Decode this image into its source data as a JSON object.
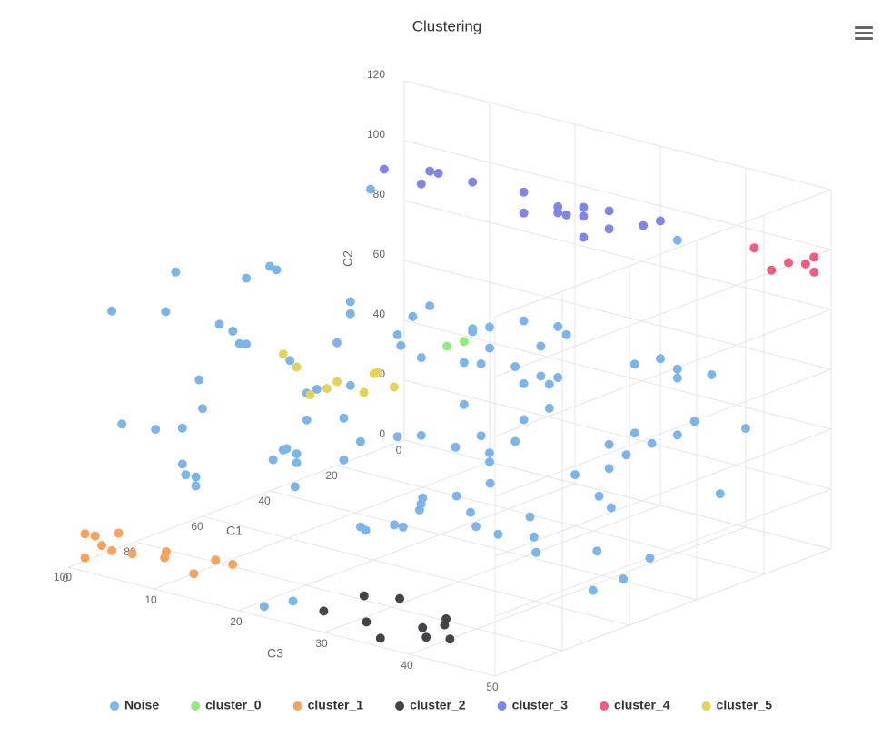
{
  "chart_data": {
    "type": "scatter3d",
    "title": "Clustering",
    "xlabel": "C1",
    "ylabel": "C2",
    "zlabel": "C3",
    "xlim": [
      0,
      100
    ],
    "ylim": [
      0,
      120
    ],
    "zlim": [
      0,
      50
    ],
    "xticks": [
      0,
      20,
      40,
      60,
      80,
      100
    ],
    "yticks": [
      0,
      20,
      40,
      60,
      80,
      100,
      120
    ],
    "zticks": [
      0,
      10,
      20,
      30,
      40,
      50
    ],
    "grid": true,
    "legend": "bottom",
    "series": [
      {
        "name": "Noise",
        "color": "#7cb5ec",
        "values": [
          [
            87,
            80,
            0
          ],
          [
            71,
            73,
            0
          ],
          [
            68,
            85,
            0
          ],
          [
            47,
            74,
            0
          ],
          [
            40,
            75,
            0
          ],
          [
            38,
            73,
            0
          ],
          [
            55,
            62,
            0
          ],
          [
            51,
            58,
            0
          ],
          [
            49,
            53,
            0
          ],
          [
            47,
            52,
            0
          ],
          [
            61,
            46,
            0
          ],
          [
            60,
            36,
            0
          ],
          [
            84,
            41,
            0
          ],
          [
            74,
            35,
            0
          ],
          [
            66,
            32,
            0
          ],
          [
            66,
            20,
            0
          ],
          [
            65,
            16,
            0
          ],
          [
            62,
            14,
            0
          ],
          [
            62,
            11,
            0
          ],
          [
            34,
            41,
            0
          ],
          [
            29,
            19,
            0
          ],
          [
            18,
            15,
            0
          ],
          [
            26,
            28,
            0
          ],
          [
            29,
            28,
            0
          ],
          [
            16,
            53,
            0
          ],
          [
            16,
            49,
            0
          ],
          [
            20,
            41,
            0
          ],
          [
            16,
            25,
            0
          ],
          [
            13,
            5,
            0
          ],
          [
            18,
            1,
            0
          ],
          [
            35,
            12,
            0
          ],
          [
            36,
            12,
            0
          ],
          [
            32,
            9,
            0
          ],
          [
            39,
            10,
            0
          ],
          [
            32,
            6,
            0
          ],
          [
            35,
            0,
            1
          ],
          [
            10,
            88,
            0
          ],
          [
            2,
            36,
            0
          ],
          [
            1,
            32,
            0
          ],
          [
            2,
            2,
            0
          ],
          [
            46,
            0,
            13
          ],
          [
            47,
            0,
            14
          ],
          [
            41,
            0,
            15
          ],
          [
            41,
            0,
            16
          ],
          [
            95,
            0,
            21
          ],
          [
            89,
            0,
            22
          ],
          [
            0,
            42,
            1
          ],
          [
            0,
            47,
            3
          ],
          [
            0,
            29,
            2
          ],
          [
            0,
            43,
            8
          ],
          [
            0,
            42,
            8
          ],
          [
            0,
            45,
            10
          ],
          [
            0,
            38,
            10
          ],
          [
            0,
            31,
            7
          ],
          [
            0,
            32,
            9
          ],
          [
            0,
            34,
            13
          ],
          [
            0,
            50,
            14
          ],
          [
            0,
            51,
            18
          ],
          [
            0,
            49,
            19
          ],
          [
            0,
            43,
            16
          ],
          [
            0,
            33,
            16
          ],
          [
            0,
            34,
            18
          ],
          [
            0,
            29,
            14
          ],
          [
            0,
            31,
            17
          ],
          [
            0,
            17,
            7
          ],
          [
            0,
            8,
            9
          ],
          [
            0,
            17,
            14
          ],
          [
            0,
            23,
            17
          ],
          [
            0,
            9,
            13
          ],
          [
            0,
            3,
            2
          ],
          [
            0,
            2,
            6
          ],
          [
            0,
            3,
            10
          ],
          [
            0,
            0,
            10
          ],
          [
            10,
            0,
            14
          ],
          [
            0,
            3,
            20
          ],
          [
            3,
            0,
            24
          ],
          [
            0,
            8,
            24
          ],
          [
            0,
            14,
            26
          ],
          [
            0,
            22,
            27
          ],
          [
            0,
            16,
            24
          ],
          [
            7,
            0,
            27
          ],
          [
            0,
            20,
            29
          ],
          [
            0,
            25,
            32
          ],
          [
            0,
            31,
            34
          ],
          [
            0,
            49,
            30
          ],
          [
            0,
            47,
            32
          ],
          [
            0,
            44,
            32
          ],
          [
            0,
            48,
            36
          ],
          [
            0,
            45,
            27
          ],
          [
            0,
            33,
            40
          ],
          [
            0,
            9,
            37
          ],
          [
            0,
            90,
            32
          ],
          [
            25,
            0,
            12
          ],
          [
            28,
            0,
            13
          ],
          [
            31,
            0,
            14
          ],
          [
            20,
            0,
            14
          ],
          [
            26,
            0,
            18
          ],
          [
            32,
            0,
            21
          ],
          [
            33,
            0,
            24
          ],
          [
            21,
            0,
            23
          ],
          [
            30,
            0,
            27
          ],
          [
            37,
            0,
            30
          ],
          [
            29,
            0,
            34
          ],
          [
            26,
            0,
            39
          ],
          [
            39,
            0,
            41
          ],
          [
            48,
            0,
            41
          ]
        ]
      },
      {
        "name": "cluster_0",
        "color": "#90ed7d",
        "values": [
          [
            0,
            35,
            5
          ],
          [
            0,
            38,
            7
          ]
        ]
      },
      {
        "name": "cluster_1",
        "color": "#f7a35c",
        "values": [
          [
            95,
            9,
            0
          ],
          [
            92,
            7,
            0
          ],
          [
            85,
            5,
            0
          ],
          [
            90,
            3,
            0
          ],
          [
            87,
            0,
            0
          ],
          [
            86,
            0,
            2
          ],
          [
            95,
            1,
            0
          ],
          [
            81,
            0,
            4
          ],
          [
            84,
            0,
            5
          ],
          [
            88,
            0,
            10
          ],
          [
            79,
            0,
            9
          ],
          [
            79,
            0,
            11
          ]
        ]
      },
      {
        "name": "cluster_2",
        "color": "#434348",
        "values": [
          [
            78,
            0,
            26
          ],
          [
            75,
            0,
            29
          ],
          [
            90,
            0,
            26
          ],
          [
            90,
            0,
            31
          ],
          [
            86,
            0,
            36
          ],
          [
            82,
            0,
            37
          ],
          [
            79,
            0,
            36
          ],
          [
            96,
            0,
            35
          ],
          [
            90,
            0,
            38
          ],
          [
            88,
            0,
            40
          ]
        ]
      },
      {
        "name": "cluster_3",
        "color": "#8085e9",
        "values": [
          [
            6,
            93,
            0
          ],
          [
            0,
            92,
            3
          ],
          [
            0,
            92,
            4
          ],
          [
            0,
            87,
            2
          ],
          [
            0,
            92,
            8
          ],
          [
            0,
            93,
            14
          ],
          [
            0,
            91,
            18
          ],
          [
            0,
            89,
            18
          ],
          [
            0,
            89,
            19
          ],
          [
            0,
            86,
            14
          ],
          [
            0,
            93,
            21
          ],
          [
            0,
            90,
            21
          ],
          [
            0,
            94,
            24
          ],
          [
            0,
            88,
            24
          ],
          [
            0,
            92,
            28
          ],
          [
            0,
            95,
            30
          ],
          [
            0,
            83,
            21
          ]
        ]
      },
      {
        "name": "cluster_4",
        "color": "#f15c80",
        "values": [
          [
            0,
            94,
            41
          ],
          [
            0,
            88,
            43
          ],
          [
            0,
            92,
            45
          ],
          [
            0,
            93,
            47
          ],
          [
            0,
            96,
            48
          ],
          [
            0,
            91,
            48
          ]
        ]
      },
      {
        "name": "cluster_5",
        "color": "#e4d354",
        "values": [
          [
            36,
            44,
            0
          ],
          [
            32,
            38,
            0
          ],
          [
            28,
            27,
            0
          ],
          [
            23,
            27,
            0
          ],
          [
            20,
            28,
            0
          ],
          [
            12,
            21,
            0
          ],
          [
            9,
            26,
            0
          ],
          [
            8,
            26,
            0
          ],
          [
            3,
            19,
            0
          ]
        ]
      }
    ]
  }
}
